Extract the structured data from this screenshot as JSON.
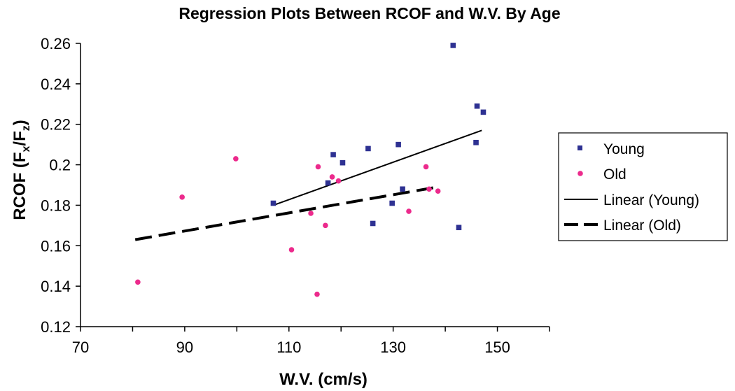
{
  "chart_data": {
    "type": "scatter",
    "title": "Regression Plots Between RCOF and W.V. By Age",
    "xlabel": "W.V. (cm/s)",
    "ylabel_main": "RCOF (F",
    "ylabel_sub1": "x",
    "ylabel_mid": "/F",
    "ylabel_sub2": "z",
    "ylabel_end": ")",
    "xlim": [
      70,
      160
    ],
    "ylim": [
      0.12,
      0.26
    ],
    "x_ticks": [
      70,
      90,
      110,
      130,
      150
    ],
    "x_tick_labels": [
      "70",
      "90",
      "110",
      "130",
      "150"
    ],
    "y_ticks": [
      0.12,
      0.14,
      0.16,
      0.18,
      0.2,
      0.22,
      0.24,
      0.26
    ],
    "y_tick_labels": [
      "0.12",
      "0.14",
      "0.16",
      "0.18",
      "0.2",
      "0.22",
      "0.24",
      "0.26"
    ],
    "grid": false,
    "legend_position": "right",
    "series": [
      {
        "name": "Young",
        "marker": "square",
        "color": "#2e3192",
        "points": [
          [
            107.0,
            0.181
          ],
          [
            117.5,
            0.191
          ],
          [
            118.5,
            0.205
          ],
          [
            120.3,
            0.201
          ],
          [
            125.2,
            0.208
          ],
          [
            126.1,
            0.171
          ],
          [
            129.8,
            0.181
          ],
          [
            131.0,
            0.21
          ],
          [
            131.8,
            0.188
          ],
          [
            141.5,
            0.259
          ],
          [
            142.6,
            0.169
          ],
          [
            145.9,
            0.211
          ],
          [
            146.1,
            0.229
          ],
          [
            147.3,
            0.226
          ]
        ]
      },
      {
        "name": "Old",
        "marker": "circle",
        "color": "#ec2a8c",
        "points": [
          [
            81.0,
            0.142
          ],
          [
            89.5,
            0.184
          ],
          [
            99.8,
            0.203
          ],
          [
            110.5,
            0.158
          ],
          [
            114.2,
            0.176
          ],
          [
            115.4,
            0.136
          ],
          [
            115.6,
            0.199
          ],
          [
            117.0,
            0.17
          ],
          [
            118.3,
            0.194
          ],
          [
            119.5,
            0.192
          ],
          [
            133.0,
            0.177
          ],
          [
            136.3,
            0.199
          ],
          [
            136.9,
            0.188
          ],
          [
            138.6,
            0.187
          ]
        ]
      }
    ],
    "trendlines": [
      {
        "name": "Linear (Young)",
        "style": "solid",
        "color": "#000000",
        "from": [
          107.0,
          0.18
        ],
        "to": [
          147.0,
          0.217
        ]
      },
      {
        "name": "Linear (Old)",
        "style": "dashed",
        "color": "#000000",
        "from": [
          80.5,
          0.163
        ],
        "to": [
          138.5,
          0.189
        ]
      }
    ]
  }
}
